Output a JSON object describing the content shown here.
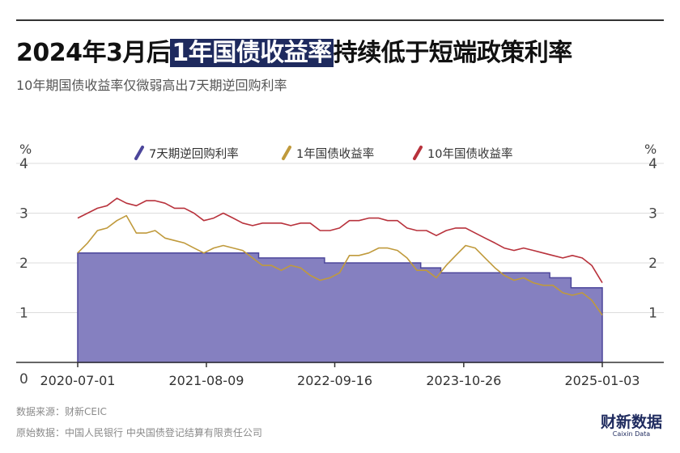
{
  "title": {
    "before": "2024年3月后",
    "highlight": "1年国债收益率",
    "after": "持续低于短端政策利率"
  },
  "subtitle": "10年期国债收益率仅微弱高出7天期逆回购利率",
  "footer": {
    "source": "数据来源：财新CEIC",
    "raw": "原始数据：中国人民银行 中央国债登记结算有限责任公司"
  },
  "logo": {
    "cn": "财新数据",
    "en": "Caixin Data"
  },
  "colors": {
    "repo": "#4c469b",
    "repo_fill": "#8580c0",
    "one_year": "#c09a3c",
    "ten_year": "#b8323c",
    "title_highlight": "#1e2a5e"
  },
  "chart_data": {
    "type": "area",
    "unit_label": "%",
    "ylim": [
      0,
      4
    ],
    "yticks": [
      "0",
      "1",
      "2",
      "3",
      "4"
    ],
    "xlim": [
      "2020-07-01",
      "2025-01-03"
    ],
    "xticks": [
      "2020-07-01",
      "2021-08-09",
      "2022-09-16",
      "2023-10-26",
      "2025-01-03"
    ],
    "grid": true,
    "legend_position": "top",
    "series": [
      {
        "name": "7天期逆回购利率",
        "kind": "area",
        "color": "#4c469b",
        "points": [
          [
            "2020-07-01",
            2.2
          ],
          [
            "2022-01-20",
            2.1
          ],
          [
            "2022-08-15",
            2.0
          ],
          [
            "2023-06-13",
            1.9
          ],
          [
            "2023-08-15",
            1.8
          ],
          [
            "2024-07-22",
            1.7
          ],
          [
            "2024-09-27",
            1.5
          ],
          [
            "2025-01-03",
            1.5
          ]
        ]
      },
      {
        "name": "1年国债收益率",
        "kind": "line",
        "color": "#c09a3c",
        "points": [
          [
            "2020-07-01",
            2.2
          ],
          [
            "2020-08-01",
            2.4
          ],
          [
            "2020-09-01",
            2.65
          ],
          [
            "2020-10-01",
            2.7
          ],
          [
            "2020-11-01",
            2.85
          ],
          [
            "2020-12-01",
            2.95
          ],
          [
            "2021-01-01",
            2.6
          ],
          [
            "2021-02-01",
            2.6
          ],
          [
            "2021-03-01",
            2.65
          ],
          [
            "2021-04-01",
            2.5
          ],
          [
            "2021-05-01",
            2.45
          ],
          [
            "2021-06-01",
            2.4
          ],
          [
            "2021-07-01",
            2.3
          ],
          [
            "2021-08-01",
            2.2
          ],
          [
            "2021-09-01",
            2.3
          ],
          [
            "2021-10-01",
            2.35
          ],
          [
            "2021-11-01",
            2.3
          ],
          [
            "2021-12-01",
            2.25
          ],
          [
            "2022-01-01",
            2.1
          ],
          [
            "2022-02-01",
            1.95
          ],
          [
            "2022-03-01",
            1.95
          ],
          [
            "2022-04-01",
            1.85
          ],
          [
            "2022-05-01",
            1.95
          ],
          [
            "2022-06-01",
            1.9
          ],
          [
            "2022-07-01",
            1.75
          ],
          [
            "2022-08-01",
            1.65
          ],
          [
            "2022-09-01",
            1.7
          ],
          [
            "2022-10-01",
            1.8
          ],
          [
            "2022-11-01",
            2.15
          ],
          [
            "2022-12-01",
            2.15
          ],
          [
            "2023-01-01",
            2.2
          ],
          [
            "2023-02-01",
            2.3
          ],
          [
            "2023-03-01",
            2.3
          ],
          [
            "2023-04-01",
            2.25
          ],
          [
            "2023-05-01",
            2.1
          ],
          [
            "2023-06-01",
            1.85
          ],
          [
            "2023-07-01",
            1.85
          ],
          [
            "2023-08-01",
            1.7
          ],
          [
            "2023-09-01",
            1.95
          ],
          [
            "2023-10-01",
            2.15
          ],
          [
            "2023-11-01",
            2.35
          ],
          [
            "2023-12-01",
            2.3
          ],
          [
            "2024-01-01",
            2.1
          ],
          [
            "2024-02-01",
            1.9
          ],
          [
            "2024-03-01",
            1.75
          ],
          [
            "2024-04-01",
            1.65
          ],
          [
            "2024-05-01",
            1.7
          ],
          [
            "2024-06-01",
            1.6
          ],
          [
            "2024-07-01",
            1.55
          ],
          [
            "2024-08-01",
            1.55
          ],
          [
            "2024-09-01",
            1.4
          ],
          [
            "2024-10-01",
            1.35
          ],
          [
            "2024-11-01",
            1.4
          ],
          [
            "2024-12-01",
            1.25
          ],
          [
            "2025-01-03",
            0.95
          ]
        ]
      },
      {
        "name": "10年国债收益率",
        "kind": "line",
        "color": "#b8323c",
        "points": [
          [
            "2020-07-01",
            2.9
          ],
          [
            "2020-08-01",
            3.0
          ],
          [
            "2020-09-01",
            3.1
          ],
          [
            "2020-10-01",
            3.15
          ],
          [
            "2020-11-01",
            3.3
          ],
          [
            "2020-12-01",
            3.2
          ],
          [
            "2021-01-01",
            3.15
          ],
          [
            "2021-02-01",
            3.25
          ],
          [
            "2021-03-01",
            3.25
          ],
          [
            "2021-04-01",
            3.2
          ],
          [
            "2021-05-01",
            3.1
          ],
          [
            "2021-06-01",
            3.1
          ],
          [
            "2021-07-01",
            3.0
          ],
          [
            "2021-08-01",
            2.85
          ],
          [
            "2021-09-01",
            2.9
          ],
          [
            "2021-10-01",
            3.0
          ],
          [
            "2021-11-01",
            2.9
          ],
          [
            "2021-12-01",
            2.8
          ],
          [
            "2022-01-01",
            2.75
          ],
          [
            "2022-02-01",
            2.8
          ],
          [
            "2022-03-01",
            2.8
          ],
          [
            "2022-04-01",
            2.8
          ],
          [
            "2022-05-01",
            2.75
          ],
          [
            "2022-06-01",
            2.8
          ],
          [
            "2022-07-01",
            2.8
          ],
          [
            "2022-08-01",
            2.65
          ],
          [
            "2022-09-01",
            2.65
          ],
          [
            "2022-10-01",
            2.7
          ],
          [
            "2022-11-01",
            2.85
          ],
          [
            "2022-12-01",
            2.85
          ],
          [
            "2023-01-01",
            2.9
          ],
          [
            "2023-02-01",
            2.9
          ],
          [
            "2023-03-01",
            2.85
          ],
          [
            "2023-04-01",
            2.85
          ],
          [
            "2023-05-01",
            2.7
          ],
          [
            "2023-06-01",
            2.65
          ],
          [
            "2023-07-01",
            2.65
          ],
          [
            "2023-08-01",
            2.55
          ],
          [
            "2023-09-01",
            2.65
          ],
          [
            "2023-10-01",
            2.7
          ],
          [
            "2023-11-01",
            2.7
          ],
          [
            "2023-12-01",
            2.6
          ],
          [
            "2024-01-01",
            2.5
          ],
          [
            "2024-02-01",
            2.4
          ],
          [
            "2024-03-01",
            2.3
          ],
          [
            "2024-04-01",
            2.25
          ],
          [
            "2024-05-01",
            2.3
          ],
          [
            "2024-06-01",
            2.25
          ],
          [
            "2024-07-01",
            2.2
          ],
          [
            "2024-08-01",
            2.15
          ],
          [
            "2024-09-01",
            2.1
          ],
          [
            "2024-10-01",
            2.15
          ],
          [
            "2024-11-01",
            2.1
          ],
          [
            "2024-12-01",
            1.95
          ],
          [
            "2025-01-03",
            1.6
          ]
        ]
      }
    ]
  }
}
